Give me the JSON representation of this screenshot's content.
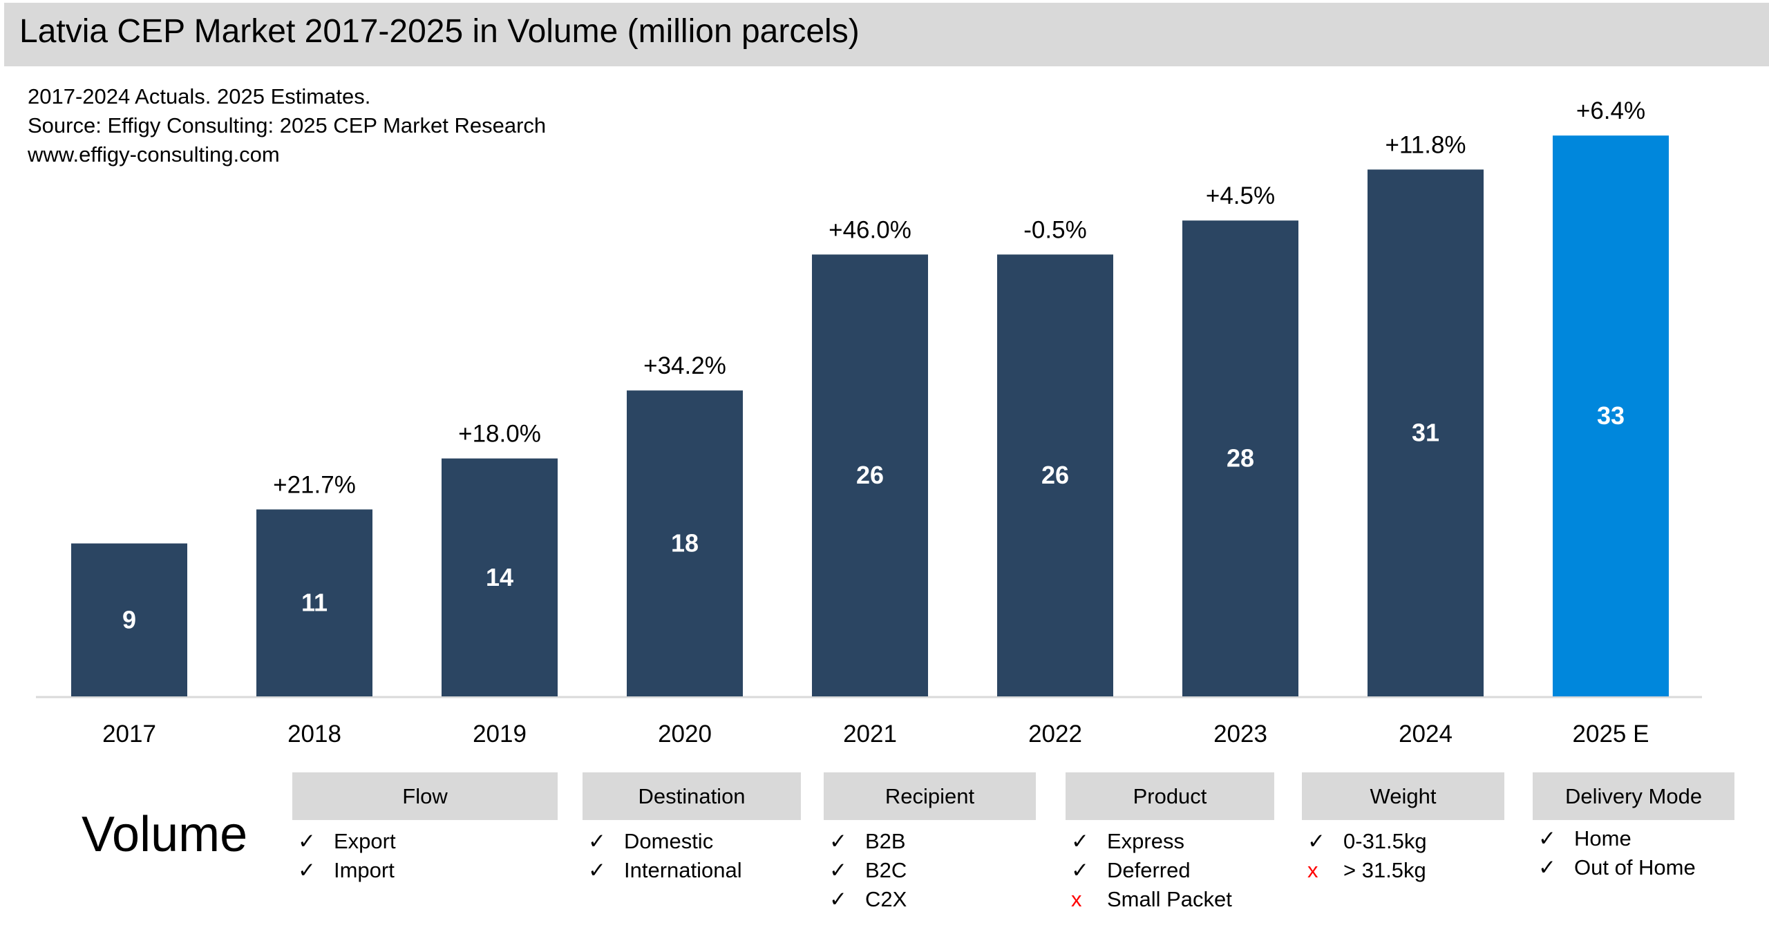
{
  "title": "Latvia CEP Market 2017-2025 in Volume (million parcels)",
  "subtitle_lines": [
    "2017-2024 Actuals. 2025 Estimates.",
    "Source: Effigy Consulting: 2025 CEP Market Research",
    "www.effigy-consulting.com"
  ],
  "chart_data": {
    "type": "bar",
    "categories": [
      "2017",
      "2018",
      "2019",
      "2020",
      "2021",
      "2022",
      "2023",
      "2024",
      "2025 E"
    ],
    "values": [
      9,
      11,
      14,
      18,
      26,
      26,
      28,
      31,
      33
    ],
    "value_labels": [
      "9",
      "11",
      "14",
      "18",
      "26",
      "26",
      "28",
      "31",
      "33"
    ],
    "growth_labels": [
      "",
      "+21.7%",
      "+18.0%",
      "+34.2%",
      "+46.0%",
      "-0.5%",
      "+4.5%",
      "+11.8%",
      "+6.4%"
    ],
    "colors": {
      "actual": "#2b4562",
      "estimate": "#0087dc"
    },
    "estimate_index": 8,
    "ylim": [
      0,
      36
    ],
    "grid": false
  },
  "segments": {
    "label": "Volume",
    "categories": [
      {
        "name": "Flow",
        "items": [
          {
            "label": "Export",
            "included": true
          },
          {
            "label": "Import",
            "included": true
          }
        ]
      },
      {
        "name": "Destination",
        "items": [
          {
            "label": "Domestic",
            "included": true
          },
          {
            "label": "International",
            "included": true
          }
        ]
      },
      {
        "name": "Recipient",
        "items": [
          {
            "label": "B2B",
            "included": true
          },
          {
            "label": "B2C",
            "included": true
          },
          {
            "label": "C2X",
            "included": true
          }
        ]
      },
      {
        "name": "Product",
        "items": [
          {
            "label": "Express",
            "included": true
          },
          {
            "label": "Deferred",
            "included": true
          },
          {
            "label": "Small Packet",
            "included": false
          }
        ]
      },
      {
        "name": "Weight",
        "items": [
          {
            "label": "0-31.5kg",
            "included": true
          },
          {
            "label": "> 31.5kg",
            "included": false
          }
        ]
      },
      {
        "name": "Delivery Mode",
        "items": [
          {
            "label": "Home",
            "included": true
          },
          {
            "label": "Out of Home",
            "included": true
          }
        ]
      }
    ],
    "check_symbol": "✓",
    "cross_symbol": "x"
  }
}
